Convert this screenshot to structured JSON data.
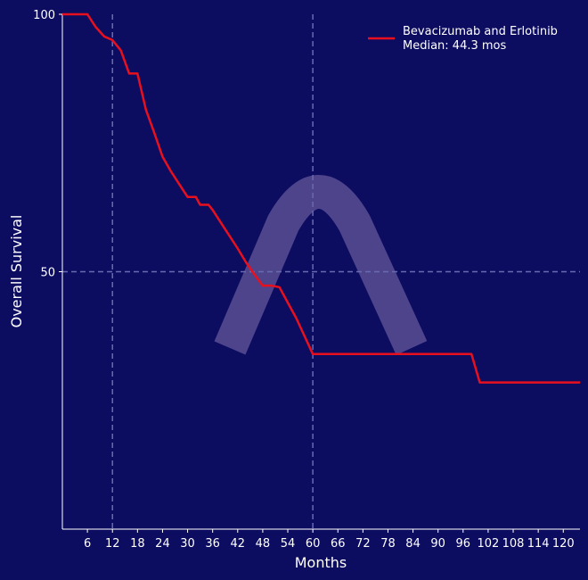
{
  "chart_data": {
    "type": "line",
    "title": "",
    "xlabel": "Months",
    "ylabel": "Overall Survival",
    "xlim": [
      0,
      124
    ],
    "ylim": [
      0,
      100
    ],
    "x_ticks": [
      6,
      12,
      18,
      24,
      30,
      36,
      42,
      48,
      54,
      60,
      66,
      72,
      78,
      84,
      90,
      96,
      102,
      108,
      114,
      120
    ],
    "y_ticks": [
      50,
      100
    ],
    "reference_lines": {
      "x": [
        12,
        60
      ],
      "y": [
        50
      ]
    },
    "grid": false,
    "legend_position": "top-right",
    "series": [
      {
        "name": "Bevacizumab and Erlotinib",
        "legend_subtitle": "Median: 44.3 mos",
        "color": "#e8101e",
        "x": [
          0,
          6,
          8,
          10,
          12,
          14,
          16,
          18,
          20,
          22,
          24,
          26,
          28,
          30,
          32,
          33,
          35,
          36,
          38,
          40,
          42,
          44,
          46,
          48,
          50,
          52,
          54,
          56,
          58,
          60,
          62,
          70,
          80,
          90,
          98,
          100,
          110,
          120,
          124
        ],
        "y": [
          100,
          100,
          97.5,
          95.7,
          95,
          93,
          88.5,
          88.5,
          81.5,
          77,
          72.3,
          69.5,
          67,
          64.5,
          64.5,
          63,
          63,
          62,
          59.5,
          57,
          54.5,
          51.8,
          49.5,
          47.3,
          47.3,
          47,
          44,
          41,
          37.5,
          34,
          34,
          34,
          34,
          34,
          34,
          28.5,
          28.5,
          28.5,
          28.5
        ]
      }
    ]
  }
}
